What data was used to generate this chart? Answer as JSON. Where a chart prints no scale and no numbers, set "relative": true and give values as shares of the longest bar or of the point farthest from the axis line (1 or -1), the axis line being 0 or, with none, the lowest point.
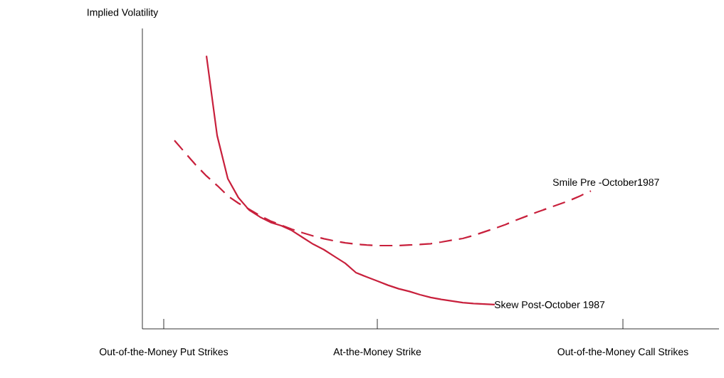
{
  "chart_data": {
    "type": "line",
    "relative": true,
    "ylabel": "Implied Volatility",
    "categories": [
      null,
      null,
      "Out-of-the-Money Put Strikes",
      null,
      null,
      null,
      null,
      null,
      null,
      null,
      null,
      null,
      null,
      null,
      null,
      null,
      null,
      null,
      null,
      null,
      null,
      null,
      "At-the-Money Strike",
      null,
      null,
      null,
      null,
      null,
      null,
      null,
      null,
      null,
      null,
      null,
      null,
      null,
      null,
      null,
      null,
      null,
      null,
      null,
      null,
      null,
      null,
      "Out-of-the-Money Call Strikes",
      null,
      null,
      null,
      null,
      null,
      null,
      null,
      null,
      null
    ],
    "series": [
      {
        "name": "Smile Pre -October1987",
        "color": "#c8203c",
        "line_style": "dashed",
        "values": [
          null,
          null,
          null,
          0.69,
          0.645,
          0.6,
          0.56,
          0.525,
          0.487,
          0.46,
          0.438,
          0.415,
          0.395,
          0.38,
          0.365,
          0.352,
          0.34,
          0.33,
          0.322,
          0.315,
          0.31,
          0.307,
          0.305,
          0.305,
          0.305,
          0.307,
          0.309,
          0.312,
          0.318,
          0.325,
          0.331,
          0.342,
          0.355,
          0.368,
          0.382,
          0.398,
          0.413,
          0.428,
          0.442,
          0.456,
          0.47,
          0.487,
          0.505,
          null,
          null,
          null,
          null,
          null,
          null,
          null,
          null,
          null,
          null,
          null,
          null
        ]
      },
      {
        "name": "Skew Post-October 1987",
        "color": "#c8203c",
        "line_style": "solid",
        "values": [
          null,
          null,
          null,
          null,
          null,
          null,
          1.0,
          0.708,
          0.55,
          0.48,
          0.435,
          0.41,
          0.39,
          0.378,
          0.36,
          0.335,
          0.31,
          0.29,
          0.265,
          0.24,
          0.206,
          0.19,
          0.175,
          0.16,
          0.147,
          0.137,
          0.125,
          0.115,
          0.108,
          0.102,
          0.096,
          0.093,
          0.091,
          0.089,
          null,
          null,
          null,
          null,
          null,
          null,
          null,
          null,
          null,
          null,
          null,
          null,
          null,
          null,
          null,
          null,
          null,
          null,
          null,
          null,
          null
        ]
      }
    ]
  }
}
